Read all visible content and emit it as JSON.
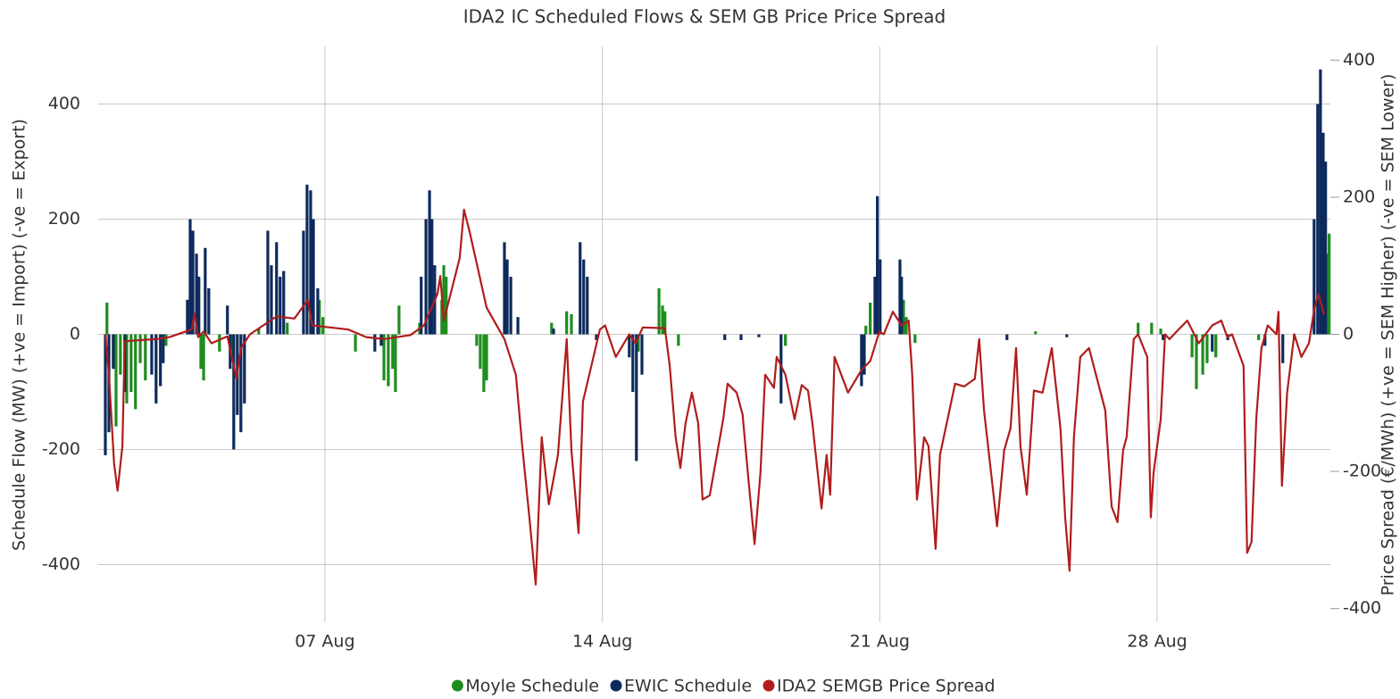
{
  "chart_data": {
    "type": "bar",
    "title": "IDA2 IC Scheduled Flows & SEM GB Price Price Spread",
    "y_label": "Schedule Flow (MW) (+ve = Import) (-ve = Export)",
    "y2_label": "Price Spread (€/MWh) (+ve = SEM Higher) (-ve = SEM Lower)",
    "xlim": [
      1.28,
      32.37
    ],
    "xticks": [
      {
        "value": 7,
        "label": "07 Aug"
      },
      {
        "value": 14,
        "label": "14 Aug"
      },
      {
        "value": 21,
        "label": "21 Aug"
      },
      {
        "value": 28,
        "label": "28 Aug"
      }
    ],
    "ylim": [
      -500,
      500
    ],
    "yticks": [
      -400,
      -200,
      0,
      200,
      400
    ],
    "y2lim": [
      -420,
      420
    ],
    "y2ticks": [
      -400,
      -200,
      0,
      200,
      400
    ],
    "grid": true,
    "legend": "bottom",
    "series": [
      {
        "name": "Moyle Schedule",
        "type": "bar",
        "color": "#1e8c1e",
        "x": [
          1.5,
          1.73,
          1.84,
          2.0,
          2.11,
          2.22,
          2.34,
          2.47,
          2.99,
          3.87,
          3.94,
          4.34,
          4.66,
          5.33,
          6.05,
          6.86,
          6.95,
          7.77,
          8.49,
          8.6,
          8.71,
          8.78,
          8.87,
          9.39,
          9.95,
          10.0,
          10.06,
          10.83,
          10.92,
          11.01,
          11.08,
          12.72,
          13.1,
          13.22,
          14.91,
          15.43,
          15.52,
          15.58,
          15.92,
          18.62,
          20.65,
          20.76,
          20.88,
          21.6,
          21.67,
          21.89,
          24.93,
          27.52,
          27.86,
          28.09,
          28.88,
          28.99,
          29.15,
          29.26,
          29.48,
          30.56,
          31.46,
          32.3,
          32.34
        ],
        "values": [
          55,
          -160,
          -70,
          -120,
          -100,
          -130,
          -50,
          -80,
          -20,
          -60,
          -80,
          -30,
          -40,
          10,
          20,
          60,
          30,
          -30,
          -80,
          -90,
          -60,
          -100,
          50,
          20,
          60,
          120,
          100,
          -20,
          -60,
          -100,
          -80,
          20,
          40,
          35,
          -30,
          80,
          50,
          40,
          -20,
          -20,
          15,
          55,
          100,
          60,
          30,
          -15,
          5,
          20,
          20,
          10,
          -40,
          -95,
          -70,
          -50,
          -40,
          -10,
          -10,
          140,
          175
        ]
      },
      {
        "name": "EWIC Schedule",
        "type": "bar",
        "color": "#0d2a5c",
        "x": [
          1.46,
          1.55,
          1.66,
          1.95,
          2.63,
          2.74,
          2.85,
          2.92,
          3.53,
          3.6,
          3.67,
          3.76,
          3.82,
          3.98,
          4.07,
          4.54,
          4.61,
          4.7,
          4.79,
          4.88,
          4.97,
          5.56,
          5.65,
          5.78,
          5.87,
          5.96,
          6.46,
          6.55,
          6.64,
          6.71,
          6.82,
          8.26,
          8.42,
          9.43,
          9.55,
          9.64,
          9.7,
          9.77,
          11.53,
          11.6,
          11.69,
          11.87,
          12.77,
          13.44,
          13.53,
          13.62,
          13.85,
          14.68,
          14.77,
          14.86,
          15.0,
          17.09,
          17.5,
          17.95,
          18.51,
          20.54,
          20.61,
          20.88,
          20.94,
          21.01,
          21.51,
          21.55,
          24.21,
          25.72,
          28.15,
          29.39,
          29.78,
          30.72,
          31.17,
          31.96,
          32.05,
          32.12,
          32.19,
          32.25
        ],
        "values": [
          -210,
          -170,
          -60,
          -100,
          -70,
          -120,
          -90,
          -50,
          60,
          200,
          180,
          140,
          100,
          150,
          80,
          50,
          -60,
          -200,
          -140,
          -170,
          -120,
          180,
          120,
          160,
          100,
          110,
          180,
          260,
          250,
          200,
          80,
          -30,
          -20,
          100,
          200,
          250,
          200,
          120,
          160,
          130,
          100,
          30,
          10,
          160,
          130,
          100,
          -10,
          -40,
          -100,
          -220,
          -70,
          -10,
          -10,
          -5,
          -120,
          -90,
          -70,
          100,
          240,
          130,
          130,
          100,
          -10,
          -5,
          -10,
          -30,
          -10,
          -20,
          -50,
          200,
          400,
          460,
          350,
          300
        ]
      },
      {
        "name": "IDA2 SEMGB Price Spread",
        "type": "line",
        "axis": "y2",
        "color": "#b01c1c",
        "x": [
          1.46,
          1.55,
          1.68,
          1.77,
          1.89,
          1.95,
          2.74,
          3.08,
          3.64,
          3.71,
          3.8,
          3.94,
          4.14,
          4.54,
          4.7,
          4.77,
          4.88,
          5.11,
          5.78,
          6.23,
          6.57,
          6.68,
          7.59,
          8.04,
          8.49,
          9.16,
          9.5,
          9.84,
          9.91,
          10.0,
          10.4,
          10.51,
          10.65,
          11.08,
          11.53,
          11.82,
          11.98,
          12.16,
          12.32,
          12.47,
          12.65,
          12.88,
          13.1,
          13.22,
          13.4,
          13.51,
          13.67,
          13.94,
          14.07,
          14.34,
          14.68,
          14.84,
          15.02,
          15.58,
          15.7,
          15.85,
          15.97,
          16.1,
          16.26,
          16.42,
          16.53,
          16.71,
          17.05,
          17.16,
          17.39,
          17.54,
          17.68,
          17.84,
          17.99,
          18.11,
          18.33,
          18.4,
          18.62,
          18.85,
          19.03,
          19.19,
          19.3,
          19.53,
          19.66,
          19.75,
          19.86,
          20.2,
          20.54,
          20.76,
          20.99,
          21.1,
          21.33,
          21.55,
          21.73,
          21.82,
          21.94,
          22.12,
          22.23,
          22.41,
          22.52,
          22.9,
          23.13,
          23.4,
          23.51,
          23.63,
          23.81,
          23.96,
          24.14,
          24.3,
          24.44,
          24.55,
          24.71,
          24.89,
          25.11,
          25.34,
          25.56,
          25.68,
          25.79,
          25.9,
          26.06,
          26.28,
          26.69,
          26.85,
          27.0,
          27.14,
          27.23,
          27.41,
          27.52,
          27.75,
          27.84,
          27.91,
          28.09,
          28.2,
          28.31,
          28.54,
          28.76,
          29.05,
          29.39,
          29.62,
          29.77,
          29.89,
          30.18,
          30.27,
          30.38,
          30.5,
          30.63,
          30.79,
          31.01,
          31.06,
          31.15,
          31.28,
          31.46,
          31.64,
          31.83,
          31.96,
          32.07,
          32.21
        ],
        "values": [
          0,
          -59,
          -189,
          -228,
          -163,
          -10,
          -7,
          -4,
          7,
          30,
          -4,
          4,
          -13,
          -3,
          -46,
          -65,
          -20,
          0,
          26,
          23,
          50,
          13,
          7,
          -4,
          -7,
          -1,
          13,
          59,
          85,
          20,
          111,
          182,
          150,
          39,
          -7,
          -59,
          -163,
          -267,
          -365,
          -150,
          -248,
          -176,
          -7,
          -169,
          -290,
          -98,
          -59,
          7,
          13,
          -33,
          0,
          -13,
          10,
          9,
          -46,
          -150,
          -195,
          -130,
          -85,
          -130,
          -241,
          -235,
          -124,
          -72,
          -85,
          -117,
          -208,
          -306,
          -202,
          -59,
          -78,
          -33,
          -59,
          -124,
          -74,
          -82,
          -130,
          -254,
          -176,
          -234,
          -33,
          -85,
          -52,
          -39,
          4,
          0,
          33,
          13,
          20,
          -59,
          -241,
          -150,
          -163,
          -313,
          -176,
          -72,
          -76,
          -65,
          -7,
          -111,
          -202,
          -280,
          -169,
          -137,
          -20,
          -163,
          -234,
          -82,
          -85,
          -20,
          -137,
          -267,
          -345,
          -150,
          -33,
          -20,
          -111,
          -251,
          -274,
          -169,
          -150,
          -7,
          0,
          -33,
          -267,
          -202,
          -124,
          0,
          -7,
          7,
          20,
          -13,
          13,
          20,
          -4,
          0,
          -46,
          -319,
          -303,
          -124,
          -20,
          13,
          0,
          33,
          -221,
          -85,
          0,
          -33,
          -13,
          35,
          59,
          29
        ]
      }
    ]
  }
}
